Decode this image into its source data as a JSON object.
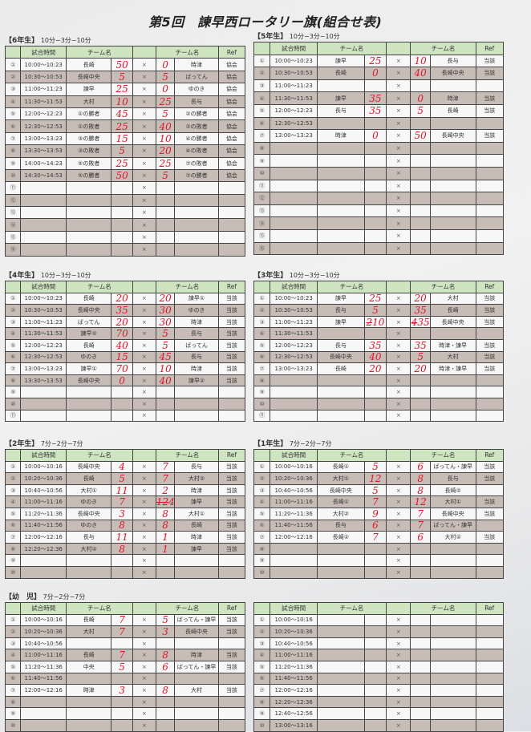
{
  "title": "第5回　諫早西ロータリー旗(組合せ表)",
  "header": {
    "no": "",
    "time": "試合時間",
    "team1": "チーム名",
    "sep": "",
    "team2": "チーム名",
    "ref": "Ref"
  },
  "colors": {
    "header_bg": "#cfe4c1",
    "shade_row": "#c8bdb6",
    "score_ink": "#e0142a"
  },
  "sections": [
    {
      "id": "g6",
      "title": "【6年生】",
      "format": "10分−3分−10分",
      "rows": [
        {
          "no": "①",
          "time": "10:00〜10:23",
          "team1": "長崎",
          "score1": "50",
          "score2": "0",
          "team2": "時津",
          "ref": "協会"
        },
        {
          "no": "②",
          "time": "10:30〜10:53",
          "team1": "長崎中央",
          "score1": "5",
          "score2": "5",
          "team2": "ばってん",
          "ref": "協会"
        },
        {
          "no": "③",
          "time": "11:00〜11:23",
          "team1": "諫早",
          "score1": "25",
          "score2": "0",
          "team2": "ゆのき",
          "ref": "協会"
        },
        {
          "no": "④",
          "time": "11:30〜11:53",
          "team1": "大村",
          "score1": "10",
          "score2": "25",
          "team2": "長与",
          "ref": "協会"
        },
        {
          "no": "⑤",
          "time": "12:00〜12:23",
          "team1": "①の勝者",
          "score1": "45",
          "score2": "5",
          "team2": "②の勝者",
          "ref": "協会"
        },
        {
          "no": "⑥",
          "time": "12:30〜12:53",
          "team1": "①の敗者",
          "score1": "25",
          "score2": "40",
          "team2": "②の敗者",
          "ref": "協会"
        },
        {
          "no": "⑦",
          "time": "13:00〜13:23",
          "team1": "③の勝者",
          "score1": "15",
          "score2": "10",
          "team2": "④の勝者",
          "ref": "協会"
        },
        {
          "no": "⑧",
          "time": "13:30〜13:53",
          "team1": "③の敗者",
          "score1": "5",
          "score2": "20",
          "team2": "④の敗者",
          "ref": "協会"
        },
        {
          "no": "⑨",
          "time": "14:00〜14:23",
          "team1": "⑤の敗者",
          "score1": "25",
          "score2": "25",
          "team2": "⑦の敗者",
          "ref": "協会"
        },
        {
          "no": "⑩",
          "time": "14:30〜14:53",
          "team1": "⑤の勝者",
          "score1": "50",
          "score2": "5",
          "team2": "⑦の勝者",
          "ref": "協会"
        },
        {
          "no": "⑪"
        },
        {
          "no": "⑫"
        },
        {
          "no": "⑬"
        },
        {
          "no": "⑭"
        },
        {
          "no": "⑮"
        },
        {
          "no": "⑯"
        }
      ]
    },
    {
      "id": "g5",
      "title": "【5年生】",
      "format": "10分−3分−10分",
      "rows": [
        {
          "no": "①",
          "time": "10:00〜10:23",
          "team1": "諫早",
          "score1": "25",
          "score2": "10",
          "team2": "長与",
          "ref": "当該"
        },
        {
          "no": "②",
          "time": "10:30〜10:53",
          "team1": "長崎",
          "score1": "0",
          "score2": "40",
          "team2": "長崎中央",
          "ref": "当該"
        },
        {
          "no": "③",
          "time": "11:00〜11:23"
        },
        {
          "no": "④",
          "time": "11:30〜11:53",
          "team1": "諫早",
          "score1": "35",
          "score2": "0",
          "team2": "時津",
          "ref": "当該"
        },
        {
          "no": "⑤",
          "time": "12:00〜12:23",
          "team1": "長与",
          "score1": "35",
          "score2": "5",
          "team2": "長崎",
          "ref": "当該"
        },
        {
          "no": "⑥",
          "time": "12:30〜12:53"
        },
        {
          "no": "⑦",
          "time": "13:00〜13:23",
          "team1": "時津",
          "score1": "0",
          "score2": "50",
          "team2": "長崎中央",
          "ref": "当該"
        },
        {
          "no": "⑧"
        },
        {
          "no": "⑨"
        },
        {
          "no": "⑩"
        },
        {
          "no": "⑪"
        },
        {
          "no": "⑫"
        },
        {
          "no": "⑬"
        },
        {
          "no": "⑭"
        },
        {
          "no": "⑮"
        },
        {
          "no": "⑯"
        }
      ]
    },
    {
      "id": "g4",
      "title": "【4年生】",
      "format": "10分−3分−10分",
      "rows": [
        {
          "no": "①",
          "time": "10:00〜10:23",
          "team1": "長崎",
          "score1": "20",
          "score2": "20",
          "team2": "諫早①",
          "ref": "当該"
        },
        {
          "no": "②",
          "time": "10:30〜10:53",
          "team1": "長崎中央",
          "score1": "35",
          "score2": "30",
          "team2": "ゆのき",
          "ref": "当該"
        },
        {
          "no": "③",
          "time": "11:00〜11:23",
          "team1": "ばってん",
          "score1": "20",
          "score2": "30",
          "team2": "時津",
          "ref": "当該"
        },
        {
          "no": "④",
          "time": "11:30〜11:53",
          "team1": "諫早②",
          "score1": "70",
          "score2": "5",
          "team2": "長与",
          "ref": "当該"
        },
        {
          "no": "⑤",
          "time": "12:00〜12:23",
          "team1": "長崎",
          "score1": "40",
          "score2": "5",
          "team2": "ばってん",
          "ref": "当該"
        },
        {
          "no": "⑥",
          "time": "12:30〜12:53",
          "team1": "ゆのき",
          "score1": "15",
          "score2": "45",
          "team2": "長与",
          "ref": "当該"
        },
        {
          "no": "⑦",
          "time": "13:00〜13:23",
          "team1": "諫早①",
          "score1": "70",
          "score2": "10",
          "team2": "時津",
          "ref": "当該"
        },
        {
          "no": "⑧",
          "time": "13:30〜13:53",
          "team1": "長崎中央",
          "score1": "0",
          "score2": "40",
          "team2": "諫早②",
          "ref": "当該"
        },
        {
          "no": "⑨"
        },
        {
          "no": "⑩"
        },
        {
          "no": "⑪"
        }
      ]
    },
    {
      "id": "g3",
      "title": "【3年生】",
      "format": "10分−3分−10分",
      "rows": [
        {
          "no": "①",
          "time": "10:00〜10:23",
          "team1": "諫早",
          "score1": "25",
          "score2": "20",
          "team2": "大村",
          "ref": "当該"
        },
        {
          "no": "②",
          "time": "10:30〜10:53",
          "team1": "長与",
          "score1": "5",
          "score2": "35",
          "team2": "長崎",
          "ref": "当該"
        },
        {
          "no": "③",
          "time": "11:00〜11:23",
          "team1": "諫早",
          "score1_struck": "2",
          "score1": "10",
          "score2_struck": "4",
          "score2": "35",
          "team2": "長崎中央",
          "ref": "当該"
        },
        {
          "no": "④",
          "time": "11:30〜11:53"
        },
        {
          "no": "⑤",
          "time": "12:00〜12:23",
          "team1": "長与",
          "score1": "35",
          "score2": "35",
          "team2": "時津・諫早",
          "ref": "当該"
        },
        {
          "no": "⑥",
          "time": "12:30〜12:53",
          "team1": "長崎中央",
          "score1": "40",
          "score2": "5",
          "team2": "大村",
          "ref": "当該"
        },
        {
          "no": "⑦",
          "time": "13:00〜13:23",
          "team1": "長崎",
          "score1": "20",
          "score2": "20",
          "team2": "時津・諫早",
          "ref": "当該"
        },
        {
          "no": "⑧"
        },
        {
          "no": "⑨"
        },
        {
          "no": "⑩"
        },
        {
          "no": "⑪"
        }
      ]
    },
    {
      "id": "g2",
      "title": "【2年生】",
      "format": "7分−2分−7分",
      "rows": [
        {
          "no": "①",
          "time": "10:00〜10:16",
          "team1": "長崎中央",
          "score1": "4",
          "score2": "7",
          "team2": "長与",
          "ref": "当該"
        },
        {
          "no": "②",
          "time": "10:20〜10:36",
          "team1": "長崎",
          "score1": "5",
          "score2": "7",
          "team2": "大村②",
          "ref": "当該"
        },
        {
          "no": "③",
          "time": "10:40〜10:56",
          "team1": "大村①",
          "score1": "11",
          "score2": "2",
          "team2": "時津",
          "ref": "当該"
        },
        {
          "no": "④",
          "time": "11:00〜11:16",
          "team1": "ゆのき",
          "score1": "7",
          "score2_struck": "12",
          "score2": "4",
          "team2": "諫早",
          "ref": "当該"
        },
        {
          "no": "⑤",
          "time": "11:20〜11:36",
          "team1": "長崎中央",
          "score1": "3",
          "score2": "8",
          "team2": "大村①",
          "ref": "当該"
        },
        {
          "no": "⑥",
          "time": "11:40〜11:56",
          "team1": "ゆのき",
          "score1": "8",
          "score2": "8",
          "team2": "長崎",
          "ref": "当該"
        },
        {
          "no": "⑦",
          "time": "12:00〜12:16",
          "team1": "長与",
          "score1": "11",
          "score2": "1",
          "team2": "時津",
          "ref": "当該"
        },
        {
          "no": "⑧",
          "time": "12:20〜12:36",
          "team1": "大村②",
          "score1": "8",
          "score2": "1",
          "team2": "諫早",
          "ref": "当該"
        },
        {
          "no": "⑨"
        },
        {
          "no": "⑩"
        }
      ]
    },
    {
      "id": "g1",
      "title": "【1年生】",
      "format": "7分−2分−7分",
      "rows": [
        {
          "no": "①",
          "time": "10:00〜10:16",
          "team1": "長崎①",
          "score1": "5",
          "score2": "6",
          "team2": "ばってん・諫早",
          "ref": "当該"
        },
        {
          "no": "②",
          "time": "10:20〜10:36",
          "team1": "大村①",
          "score1": "12",
          "score2": "8",
          "team2": "長与",
          "ref": "当該"
        },
        {
          "no": "③",
          "time": "10:40〜10:56",
          "team1": "長崎中央",
          "score1": "5",
          "score2": "8",
          "team2": "長崎②"
        },
        {
          "no": "④",
          "time": "11:00〜11:16",
          "team1": "長崎①",
          "score1": "7",
          "score2": "12",
          "team2": "大村①",
          "ref": "当該"
        },
        {
          "no": "⑤",
          "time": "11:20〜11:36",
          "team1": "大村②",
          "score1": "9",
          "score2": "7",
          "team2": "長崎中央",
          "ref": "当該"
        },
        {
          "no": "⑥",
          "time": "11:40〜11:56",
          "team1": "長与",
          "score1": "6",
          "score2": "7",
          "team2": "ばってん・諫早"
        },
        {
          "no": "⑦",
          "time": "12:00〜12:16",
          "team1": "長崎②",
          "score1": "7",
          "score2": "6",
          "team2": "大村②",
          "ref": "当該"
        },
        {
          "no": "⑧"
        },
        {
          "no": "⑨"
        },
        {
          "no": "⑩"
        }
      ]
    },
    {
      "id": "gk",
      "title": "【幼　児】",
      "format": "7分−2分−7分",
      "rows": [
        {
          "no": "①",
          "time": "10:00〜10:16",
          "team1": "長崎",
          "score1": "7",
          "score2": "5",
          "team2": "ばってん・諫早",
          "ref": "当該"
        },
        {
          "no": "②",
          "time": "10:20〜10:36",
          "team1": "大村",
          "score1": "7",
          "score2": "3",
          "team2": "長崎中央",
          "ref": "当該"
        },
        {
          "no": "③",
          "time": "10:40〜10:56"
        },
        {
          "no": "④",
          "time": "11:00〜11:16",
          "team1": "長崎",
          "score1": "7",
          "score2": "8",
          "team2": "時津",
          "ref": "当該"
        },
        {
          "no": "⑤",
          "time": "11:20〜11:36",
          "team1": "中央",
          "score1": "5",
          "score2": "6",
          "team2": "ばってん・諫早",
          "ref": "当該"
        },
        {
          "no": "⑥",
          "time": "11:40〜11:56"
        },
        {
          "no": "⑦",
          "time": "12:00〜12:16",
          "team1": "時津",
          "score1": "3",
          "score2": "8",
          "team2": "大村",
          "ref": "当該"
        },
        {
          "no": "⑧"
        },
        {
          "no": "⑨"
        },
        {
          "no": "⑩"
        }
      ]
    },
    {
      "id": "gx",
      "title": "",
      "format": "",
      "rows": [
        {
          "no": "①",
          "time": "10:00〜10:16"
        },
        {
          "no": "②",
          "time": "10:20〜10:36"
        },
        {
          "no": "③",
          "time": "10:40〜10:56"
        },
        {
          "no": "④",
          "time": "11:00〜11:16"
        },
        {
          "no": "⑤",
          "time": "11:20〜11:36"
        },
        {
          "no": "⑥",
          "time": "11:40〜11:56"
        },
        {
          "no": "⑦",
          "time": "12:00〜12:16"
        },
        {
          "no": "⑧",
          "time": "12:20〜12:36"
        },
        {
          "no": "⑨",
          "time": "12:40〜12:56"
        },
        {
          "no": "⑩",
          "time": "13:00〜13:16"
        }
      ]
    }
  ],
  "separator": "×"
}
